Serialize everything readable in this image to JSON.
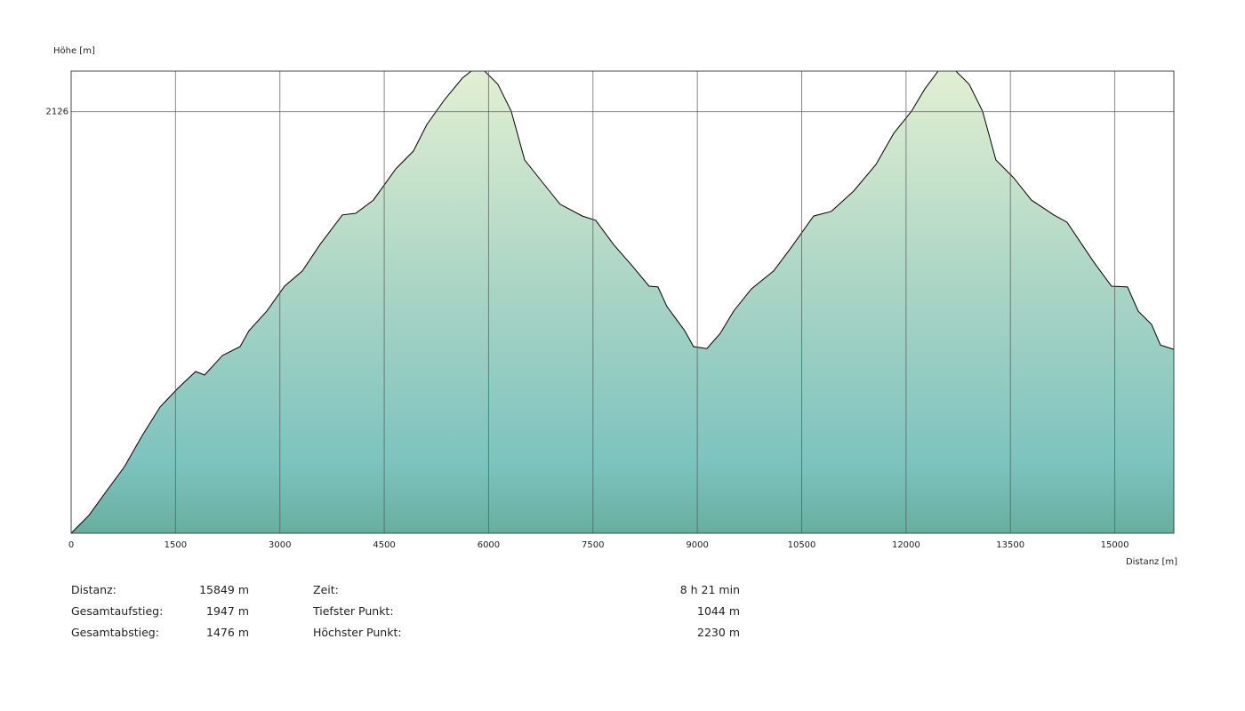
{
  "chart_data": {
    "type": "area",
    "ylabel": "Höhe [m]",
    "xlabel": "Distanz [m]",
    "x": [
      0,
      128,
      256,
      511,
      767,
      1022,
      1278,
      1534,
      1789,
      1917,
      2173,
      2428,
      2556,
      2812,
      3067,
      3323,
      3578,
      3898,
      4090,
      4345,
      4665,
      4920,
      5112,
      5368,
      5623,
      5751,
      5943,
      6134,
      6326,
      6518,
      6773,
      7029,
      7348,
      7540,
      7796,
      8051,
      8307,
      8435,
      8562,
      8818,
      8946,
      9138,
      9329,
      9521,
      9777,
      10096,
      10352,
      10671,
      10927,
      11247,
      11566,
      11822,
      12077,
      12269,
      12461,
      12716,
      12908,
      13100,
      13291,
      13547,
      13802,
      14122,
      14314,
      14697,
      14953,
      15183,
      15336,
      15528,
      15656,
      15849
    ],
    "values": [
      1044,
      1067,
      1090,
      1153,
      1215,
      1295,
      1368,
      1416,
      1459,
      1450,
      1500,
      1523,
      1564,
      1614,
      1678,
      1717,
      1785,
      1861,
      1865,
      1899,
      1979,
      2025,
      2093,
      2157,
      2212,
      2230,
      2230,
      2196,
      2127,
      2002,
      1945,
      1888,
      1858,
      1847,
      1785,
      1733,
      1678,
      1676,
      1626,
      1564,
      1523,
      1518,
      1557,
      1614,
      1671,
      1717,
      1778,
      1858,
      1870,
      1922,
      1990,
      2070,
      2127,
      2184,
      2230,
      2230,
      2196,
      2127,
      2002,
      1956,
      1899,
      1861,
      1842,
      1740,
      1678,
      1676,
      1614,
      1580,
      1527,
      1516
    ],
    "color": "#000000",
    "xlim": [
      0,
      15849
    ],
    "ylim": [
      1044,
      2230
    ],
    "xticks": [
      0,
      1500,
      3000,
      4500,
      6000,
      7500,
      9000,
      10500,
      12000,
      13500,
      15000
    ],
    "yticks": [
      2126
    ],
    "grid": true
  },
  "stats": [
    [
      {
        "label": "Distanz:",
        "value": "15849 m"
      },
      {
        "label": "Zeit:",
        "value": "8 h 21 min"
      }
    ],
    [
      {
        "label": "Gesamtaufstieg:",
        "value": "1947 m"
      },
      {
        "label": "Tiefster Punkt:",
        "value": "1044 m"
      }
    ],
    [
      {
        "label": "Gesamtabstieg:",
        "value": "1476 m"
      },
      {
        "label": "Höchster Punkt:",
        "value": "2230 m"
      }
    ]
  ]
}
